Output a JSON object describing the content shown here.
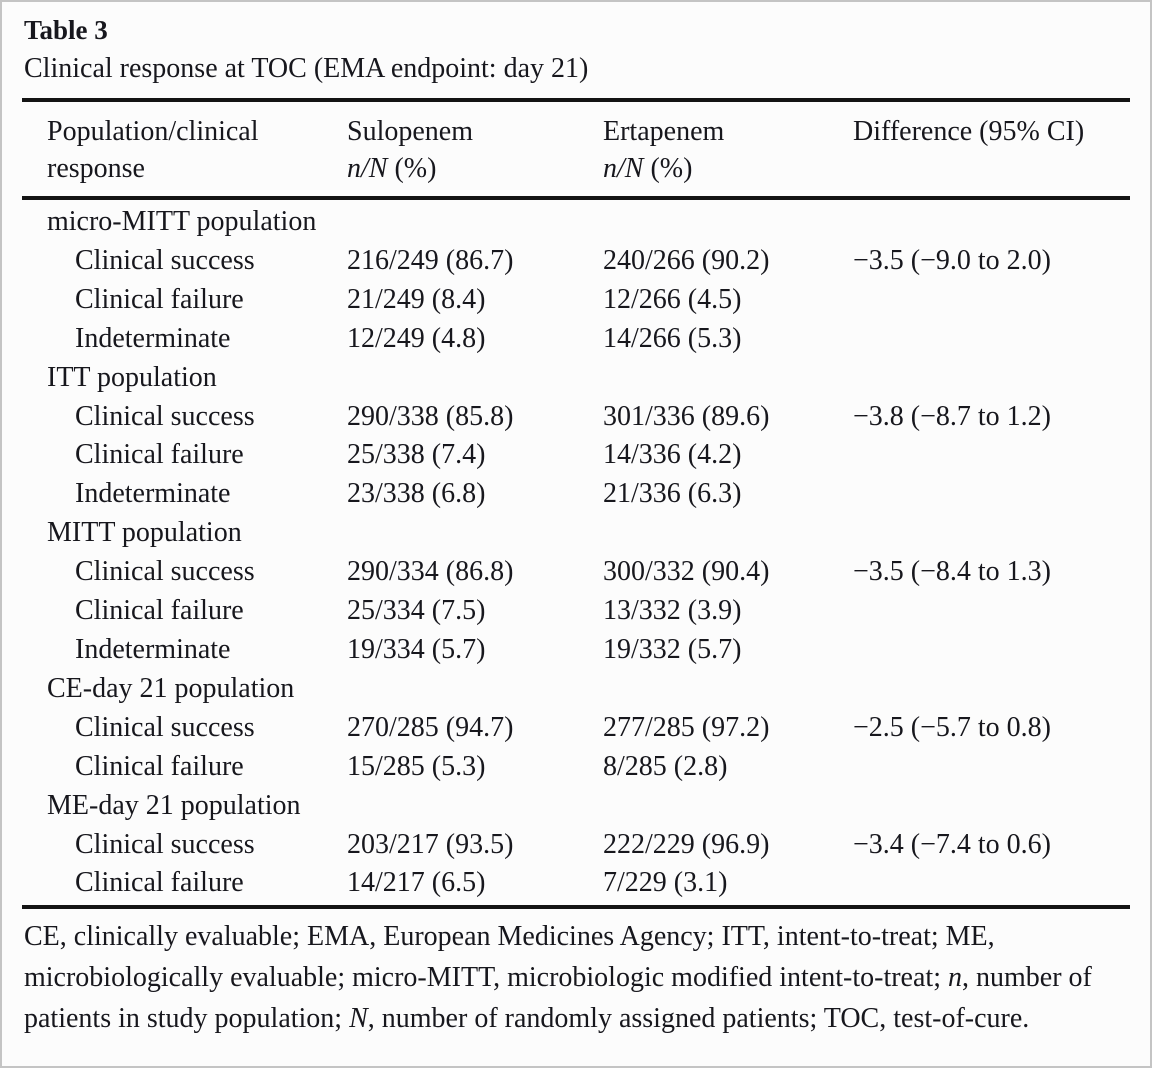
{
  "colors": {
    "background": "#fcfcfc",
    "frame_border": "#c4c4c4",
    "rule": "#141414",
    "text": "#17171d"
  },
  "table": {
    "label": "Table 3",
    "caption": "Clinical response at TOC (EMA endpoint: day 21)",
    "header": {
      "col1_line1": "Population/clinical",
      "col1_line2": "response",
      "col2_name": "Sulopenem",
      "col3_name": "Ertapenem",
      "nN_label": "n/N",
      "pct_label": " (%)",
      "col4_label": "Difference (95% CI)"
    },
    "sections": [
      {
        "header": "micro-MITT population",
        "rows": [
          [
            "Clinical success",
            "216/249 (86.7)",
            "240/266 (90.2)",
            "−3.5 (−9.0 to 2.0)"
          ],
          [
            "Clinical failure",
            "21/249 (8.4)",
            "12/266 (4.5)",
            ""
          ],
          [
            "Indeterminate",
            "12/249 (4.8)",
            "14/266 (5.3)",
            ""
          ]
        ]
      },
      {
        "header": "ITT population",
        "rows": [
          [
            "Clinical success",
            "290/338 (85.8)",
            "301/336 (89.6)",
            "−3.8 (−8.7 to 1.2)"
          ],
          [
            "Clinical failure",
            "25/338 (7.4)",
            "14/336 (4.2)",
            ""
          ],
          [
            "Indeterminate",
            "23/338 (6.8)",
            "21/336 (6.3)",
            ""
          ]
        ]
      },
      {
        "header": "MITT population",
        "rows": [
          [
            "Clinical success",
            "290/334 (86.8)",
            "300/332 (90.4)",
            "−3.5 (−8.4 to 1.3)"
          ],
          [
            "Clinical failure",
            "25/334 (7.5)",
            "13/332 (3.9)",
            ""
          ],
          [
            "Indeterminate",
            "19/334 (5.7)",
            "19/332 (5.7)",
            ""
          ]
        ]
      },
      {
        "header": "CE-day 21 population",
        "rows": [
          [
            "Clinical success",
            "270/285 (94.7)",
            "277/285 (97.2)",
            "−2.5 (−5.7 to 0.8)"
          ],
          [
            "Clinical failure",
            "15/285 (5.3)",
            "8/285 (2.8)",
            ""
          ]
        ]
      },
      {
        "header": "ME-day 21 population",
        "rows": [
          [
            "Clinical success",
            "203/217 (93.5)",
            "222/229 (96.9)",
            "−3.4 (−7.4 to 0.6)"
          ],
          [
            "Clinical failure",
            "14/217 (6.5)",
            "7/229 (3.1)",
            ""
          ]
        ]
      }
    ],
    "footnote": {
      "part1": "CE, clinically evaluable; EMA, European Medicines Agency; ITT, intent-to-treat; ME, microbiologically evaluable; micro-MITT, microbiologic modified intent-to-treat; ",
      "n_label": "n",
      "part2": ", number of patients in study population; ",
      "N_label": "N",
      "part3": ", number of randomly assigned patients; TOC, test-of-cure."
    }
  }
}
